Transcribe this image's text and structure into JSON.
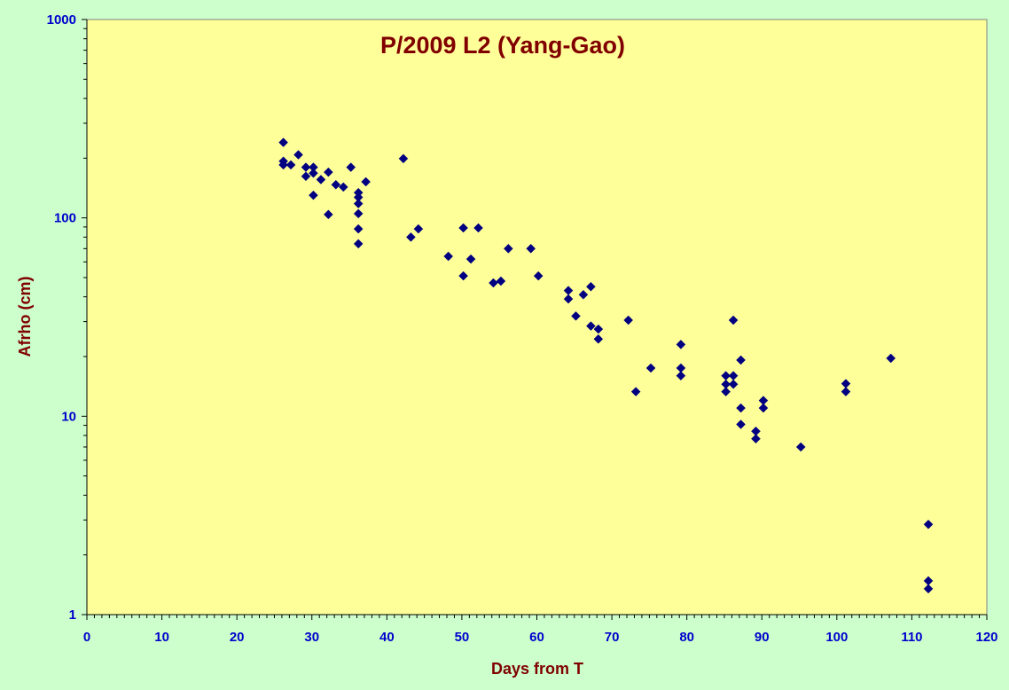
{
  "colors": {
    "chart_area": "#ccffcc",
    "plot_area": "#ffff99",
    "marker": "#000080",
    "axis_line": "#000000",
    "tick_label": "#0000cc",
    "title": "#800000"
  },
  "marker_icon": "diamond",
  "chart_data": {
    "type": "scatter",
    "title": "P/2009 L2 (Yang-Gao)",
    "xlabel": "Days from T",
    "ylabel": "Afrho (cm)",
    "xlim": [
      0,
      120
    ],
    "ylim": [
      1,
      1000
    ],
    "yscale": "log",
    "grid": false,
    "legend": "none",
    "x_ticks": [
      "0",
      "10",
      "20",
      "30",
      "40",
      "50",
      "60",
      "70",
      "80",
      "90",
      "100",
      "110",
      "120"
    ],
    "y_ticks": [
      "1",
      "10",
      "100",
      "1000"
    ],
    "points": [
      [
        26.2,
        240
      ],
      [
        26.2,
        193
      ],
      [
        26.2,
        185
      ],
      [
        27.2,
        185
      ],
      [
        28.2,
        208
      ],
      [
        29.2,
        180
      ],
      [
        29.2,
        162
      ],
      [
        30.2,
        180
      ],
      [
        30.2,
        168
      ],
      [
        30.2,
        130
      ],
      [
        31.2,
        156
      ],
      [
        32.2,
        170
      ],
      [
        32.2,
        104
      ],
      [
        33.2,
        147
      ],
      [
        34.2,
        143
      ],
      [
        35.2,
        180
      ],
      [
        36.2,
        134
      ],
      [
        36.2,
        127
      ],
      [
        36.2,
        118
      ],
      [
        36.2,
        105
      ],
      [
        36.2,
        88
      ],
      [
        36.2,
        74
      ],
      [
        37.2,
        152
      ],
      [
        42.2,
        199
      ],
      [
        43.2,
        80
      ],
      [
        44.2,
        88
      ],
      [
        48.2,
        64
      ],
      [
        50.2,
        89
      ],
      [
        50.2,
        51
      ],
      [
        51.2,
        62
      ],
      [
        52.2,
        89
      ],
      [
        54.2,
        47
      ],
      [
        55.2,
        48
      ],
      [
        56.2,
        70
      ],
      [
        59.2,
        70
      ],
      [
        60.2,
        51
      ],
      [
        64.2,
        43
      ],
      [
        64.2,
        39
      ],
      [
        65.2,
        32
      ],
      [
        66.2,
        41
      ],
      [
        67.2,
        45
      ],
      [
        67.2,
        28.5
      ],
      [
        68.2,
        27.5
      ],
      [
        68.2,
        24.5
      ],
      [
        72.2,
        30.5
      ],
      [
        73.2,
        13.3
      ],
      [
        75.2,
        17.5
      ],
      [
        79.2,
        23
      ],
      [
        79.2,
        17.5
      ],
      [
        79.2,
        16
      ],
      [
        85.2,
        16
      ],
      [
        85.2,
        14.5
      ],
      [
        85.2,
        13.3
      ],
      [
        86.2,
        30.5
      ],
      [
        86.2,
        16
      ],
      [
        86.2,
        14.5
      ],
      [
        87.2,
        19.2
      ],
      [
        87.2,
        11
      ],
      [
        87.2,
        9.1
      ],
      [
        89.2,
        8.4
      ],
      [
        89.2,
        7.7
      ],
      [
        90.2,
        12
      ],
      [
        90.2,
        11
      ],
      [
        95.2,
        7
      ],
      [
        101.2,
        14.6
      ],
      [
        101.2,
        13.3
      ],
      [
        107.2,
        19.6
      ],
      [
        112.2,
        2.85
      ],
      [
        112.2,
        1.48
      ],
      [
        112.2,
        1.35
      ]
    ]
  }
}
